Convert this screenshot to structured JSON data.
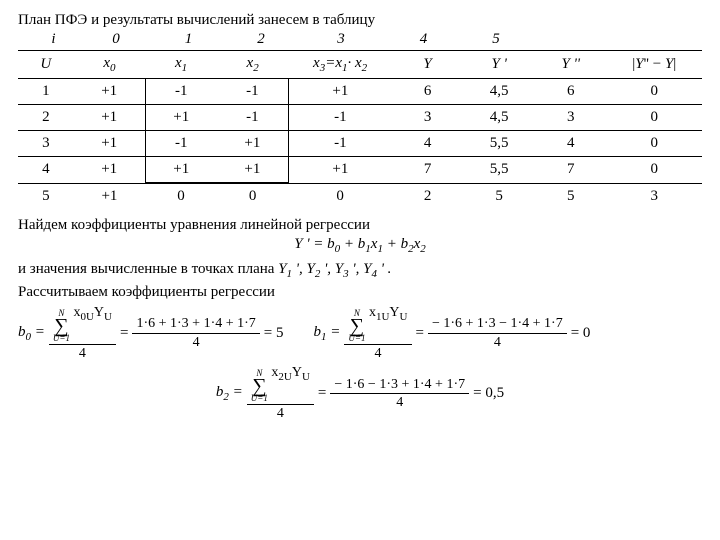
{
  "title": "План ПФЭ и результаты вычислений занесем в таблицу",
  "index_labels": [
    "i",
    "0",
    "1",
    "2",
    "3",
    "4",
    "5"
  ],
  "index_widths": [
    55,
    70,
    75,
    70,
    90,
    75,
    70
  ],
  "table": {
    "headers": [
      "U",
      "x0",
      "x1",
      "x2",
      "x3=x1· x2",
      "Y",
      "Y '",
      "Y ''",
      "|Y'' − Y|"
    ],
    "rows": [
      [
        "1",
        "+1",
        "-1",
        "-1",
        "+1",
        "6",
        "4,5",
        "6",
        "0"
      ],
      [
        "2",
        "+1",
        "+1",
        "-1",
        "-1",
        "3",
        "4,5",
        "3",
        "0"
      ],
      [
        "3",
        "+1",
        "-1",
        "+1",
        "-1",
        "4",
        "5,5",
        "4",
        "0"
      ],
      [
        "4",
        "+1",
        "+1",
        "+1",
        "+1",
        "7",
        "5,5",
        "7",
        "0"
      ],
      [
        "5",
        "+1",
        "0",
        "0",
        "0",
        "2",
        "5",
        "5",
        "3"
      ]
    ],
    "col_widths_pct": [
      7,
      9,
      9,
      9,
      13,
      9,
      9,
      9,
      12
    ],
    "outline_cols": {
      "start": 2,
      "end": 3,
      "row_start": 0,
      "row_end": 3
    }
  },
  "para1": "Найдем коэффициенты уравнения линейной регрессии",
  "eq_regression": "Y ' = b0 + b1x1 + b2x2",
  "para2_a": "и значения вычисленные в точках плана ",
  "para2_b": "Y1 ', Y2 ', Y3 ', Y4 ' .",
  "para3": "Рассчитываем коэффициенты регрессии",
  "b0": {
    "lhs": "b0 =",
    "sum_var": "x0UYU",
    "den": "4",
    "mid_num": "1·6 + 1·3 + 1·4 + 1·7",
    "mid_den": "4",
    "result": "= 5"
  },
  "b1": {
    "lhs": "b1 =",
    "sum_var": "x1UYU",
    "den": "4",
    "mid_num": "− 1·6 + 1·3 − 1·4 + 1·7",
    "mid_den": "4",
    "result": "= 0"
  },
  "b2": {
    "lhs": "b2 =",
    "sum_var": "x2UYU",
    "den": "4",
    "mid_num": "− 1·6 − 1·3 + 1·4 + 1·7",
    "mid_den": "4",
    "result": "= 0,5"
  },
  "sigma": {
    "top": "N",
    "bottom": "U=1"
  }
}
